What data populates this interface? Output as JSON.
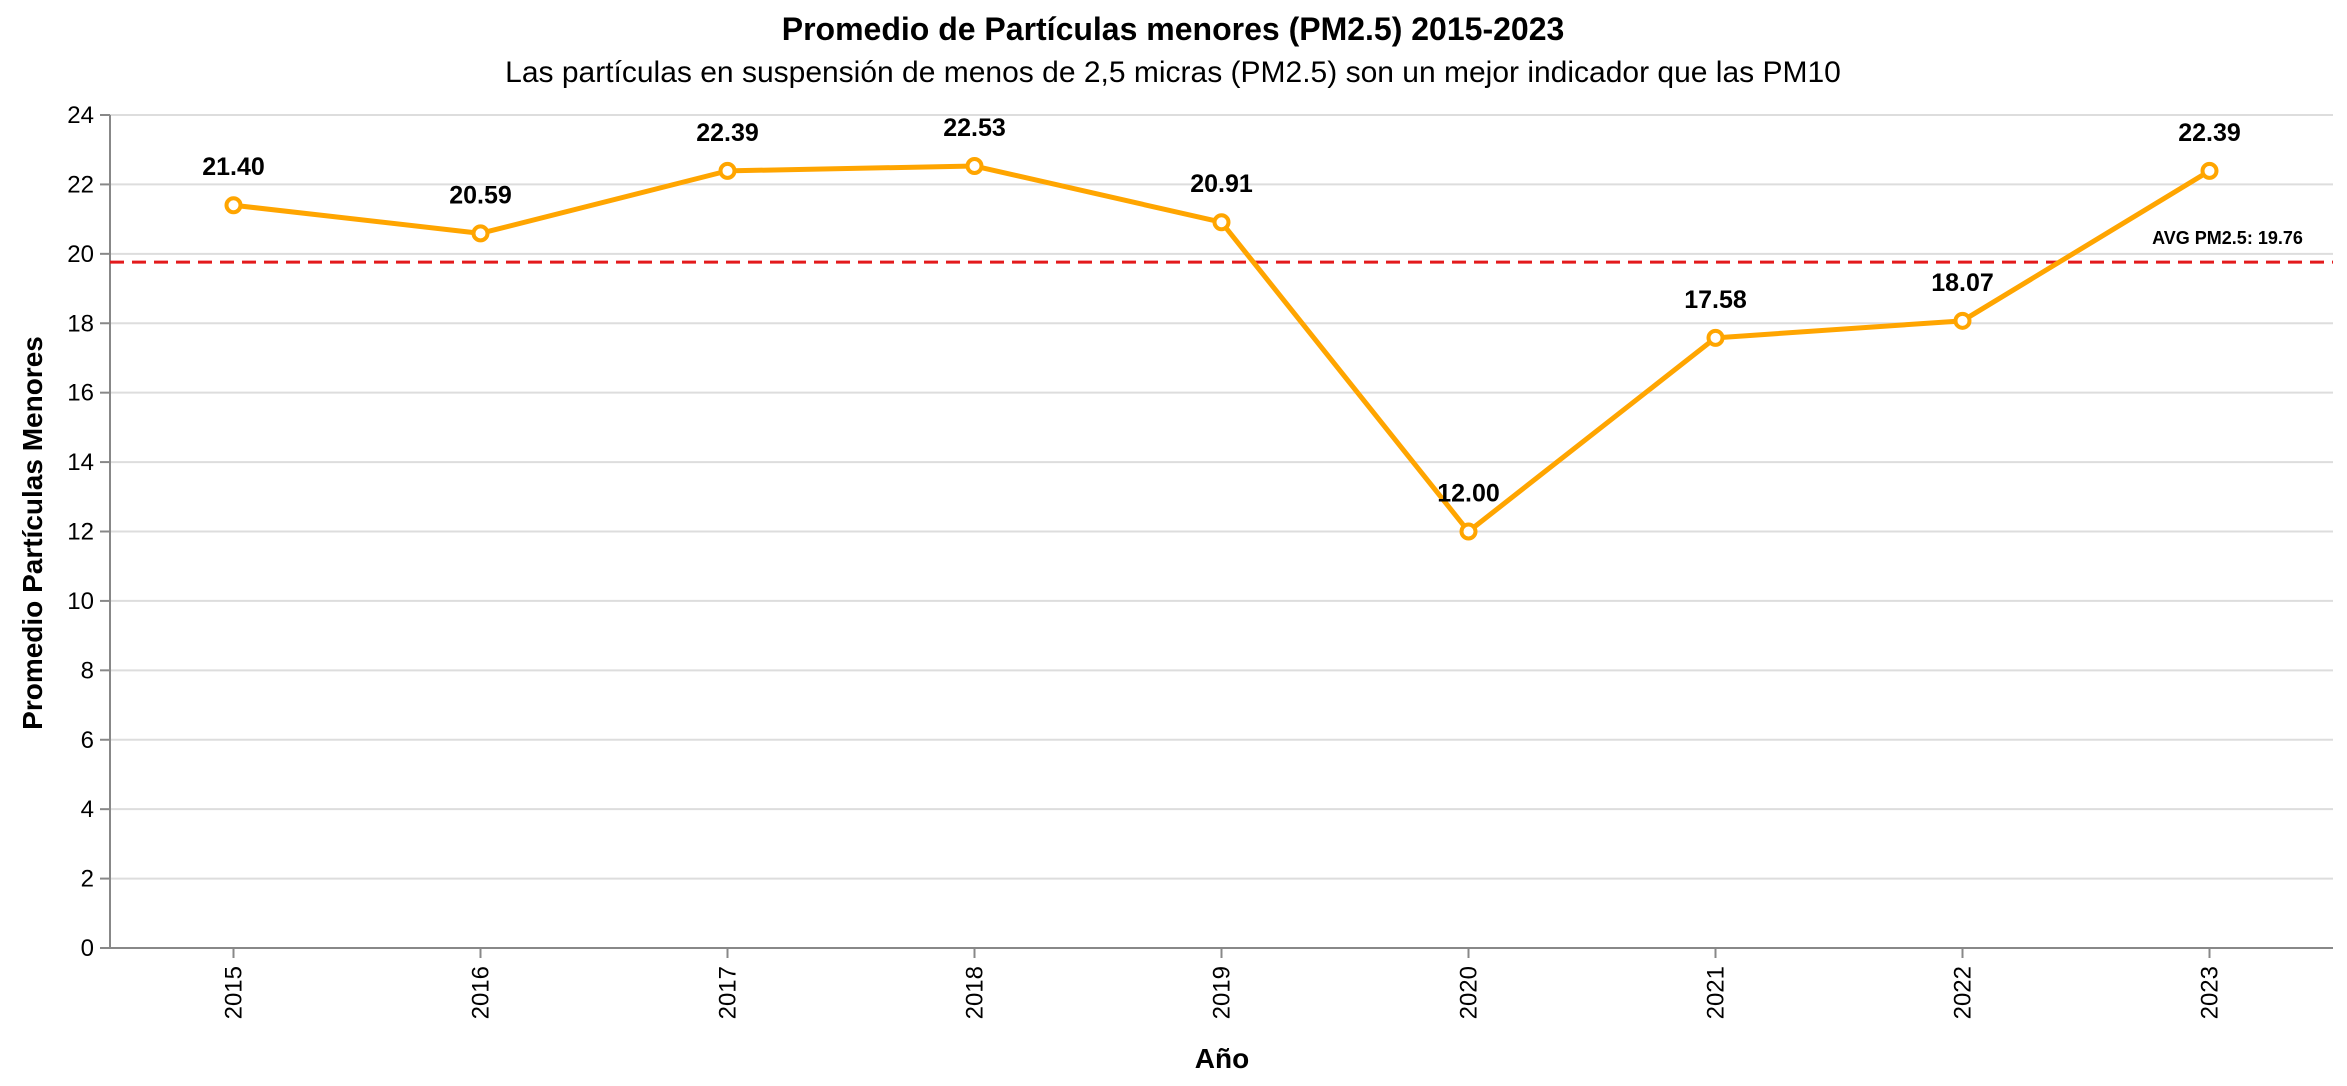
{
  "colors": {
    "series": "#FFA500",
    "reference": "#E31A1C",
    "grid": "#DDDDDD",
    "axis": "#888888",
    "text": "#000000"
  },
  "chart_data": {
    "type": "line",
    "title": "Promedio de Partículas menores (PM2.5) 2015-2023",
    "subtitle": "Las partículas en suspensión de menos de 2,5 micras (PM2.5) son un mejor indicador que las PM10",
    "xlabel": "Año",
    "ylabel": "Promedio Partículas Menores",
    "x": [
      "2015",
      "2016",
      "2017",
      "2018",
      "2019",
      "2020",
      "2021",
      "2022",
      "2023"
    ],
    "series": [
      {
        "values": [
          21.4,
          20.59,
          22.39,
          22.53,
          20.91,
          12.0,
          17.58,
          18.07,
          22.39
        ],
        "labels": [
          "21.40",
          "20.59",
          "22.39",
          "22.53",
          "20.91",
          "12.00",
          "17.58",
          "18.07",
          "22.39"
        ]
      }
    ],
    "ylim": [
      0,
      24
    ],
    "yticks": [
      0,
      2,
      4,
      6,
      8,
      10,
      12,
      14,
      16,
      18,
      20,
      22,
      24
    ],
    "grid": true,
    "reference_line": {
      "value": 19.76,
      "label": "AVG PM2.5: 19.76",
      "style": "dashed"
    }
  }
}
